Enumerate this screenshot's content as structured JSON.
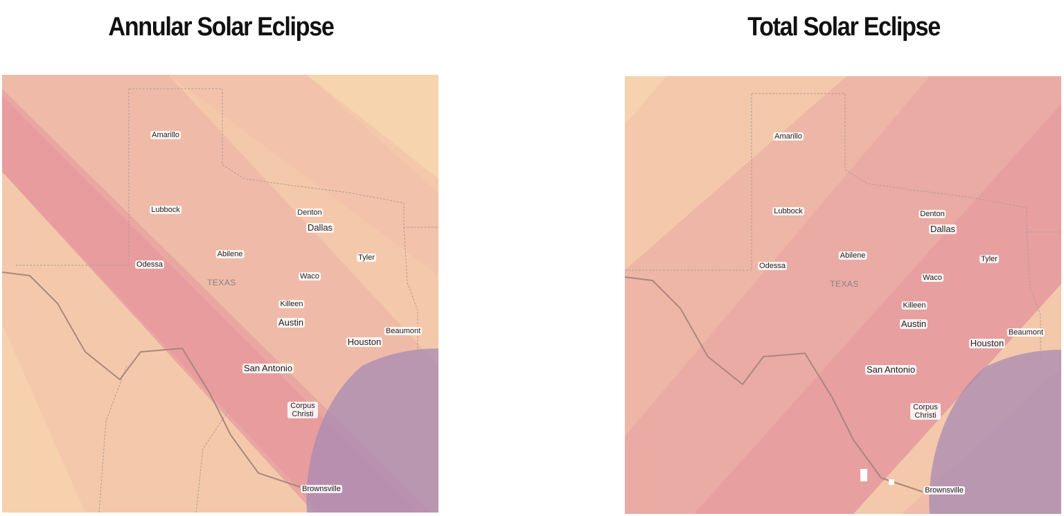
{
  "maps": [
    {
      "title": "Annular Solar Eclipse",
      "labels": [
        "Amarillo",
        "Lubbock",
        "Odessa",
        "Abilene",
        "TEXAS",
        "Denton",
        "Dallas",
        "Tyler",
        "Waco",
        "Killeen",
        "Austin",
        "Beaumont",
        "Houston",
        "San Antonio",
        "Corpus Christi",
        "Brownsville"
      ]
    },
    {
      "title": "Total Solar Eclipse",
      "labels": [
        "Amarillo",
        "Lubbock",
        "Odessa",
        "Abilene",
        "TEXAS",
        "Denton",
        "Dallas",
        "Tyler",
        "Waco",
        "Killeen",
        "Austin",
        "Beaumont",
        "Houston",
        "San Antonio",
        "Corpus Christi",
        "Brownsville"
      ]
    }
  ]
}
